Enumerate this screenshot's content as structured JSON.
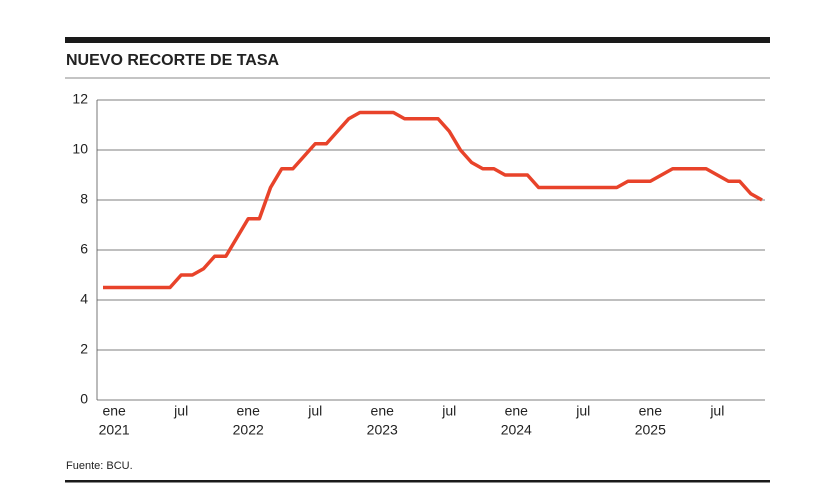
{
  "chart_data": {
    "type": "line",
    "title": "NUEVO RECORTE DE TASA",
    "source": "Fuente: BCU.",
    "x": [
      "2020-12",
      "2021-01",
      "2021-02",
      "2021-03",
      "2021-04",
      "2021-05",
      "2021-06",
      "2021-07",
      "2021-08",
      "2021-09",
      "2021-10",
      "2021-11",
      "2021-12",
      "2022-01",
      "2022-02",
      "2022-03",
      "2022-04",
      "2022-05",
      "2022-06",
      "2022-07",
      "2022-08",
      "2022-09",
      "2022-10",
      "2022-11",
      "2022-12",
      "2023-01",
      "2023-02",
      "2023-03",
      "2023-04",
      "2023-05",
      "2023-06",
      "2023-07",
      "2023-08",
      "2023-09",
      "2023-10",
      "2023-11",
      "2023-12",
      "2024-01",
      "2024-02",
      "2024-03",
      "2024-04",
      "2024-05",
      "2024-06",
      "2024-07",
      "2024-08",
      "2024-09",
      "2024-10",
      "2024-11",
      "2024-12",
      "2025-01",
      "2025-02",
      "2025-03",
      "2025-04",
      "2025-05",
      "2025-06",
      "2025-07",
      "2025-08",
      "2025-09",
      "2025-10",
      "2025-11"
    ],
    "series": [
      {
        "color": "#e8432a",
        "values": [
          4.5,
          4.5,
          4.5,
          4.5,
          4.5,
          4.5,
          4.5,
          5.0,
          5.0,
          5.25,
          5.75,
          5.75,
          6.5,
          7.25,
          7.25,
          8.5,
          9.25,
          9.25,
          9.75,
          10.25,
          10.25,
          10.75,
          11.25,
          11.5,
          11.5,
          11.5,
          11.5,
          11.25,
          11.25,
          11.25,
          11.25,
          10.75,
          10.0,
          9.5,
          9.25,
          9.25,
          9.0,
          9.0,
          9.0,
          8.5,
          8.5,
          8.5,
          8.5,
          8.5,
          8.5,
          8.5,
          8.5,
          8.75,
          8.75,
          8.75,
          9.0,
          9.25,
          9.25,
          9.25,
          9.25,
          9.0,
          8.75,
          8.75,
          8.25,
          8.0
        ]
      }
    ],
    "xlim": [
      "2020-12",
      "2025-11"
    ],
    "xticks": [
      {
        "value": "2021-01",
        "label": "ene",
        "year": "2021"
      },
      {
        "value": "2021-07",
        "label": "jul"
      },
      {
        "value": "2022-01",
        "label": "ene",
        "year": "2022"
      },
      {
        "value": "2022-07",
        "label": "jul"
      },
      {
        "value": "2023-01",
        "label": "ene",
        "year": "2023"
      },
      {
        "value": "2023-07",
        "label": "jul"
      },
      {
        "value": "2024-01",
        "label": "ene",
        "year": "2024"
      },
      {
        "value": "2024-07",
        "label": "jul"
      },
      {
        "value": "2025-01",
        "label": "ene",
        "year": "2025"
      },
      {
        "value": "2025-07",
        "label": "jul"
      }
    ],
    "ylim": [
      0,
      12
    ],
    "yticks": [
      0,
      2,
      4,
      6,
      8,
      10,
      12
    ],
    "grid": true
  }
}
